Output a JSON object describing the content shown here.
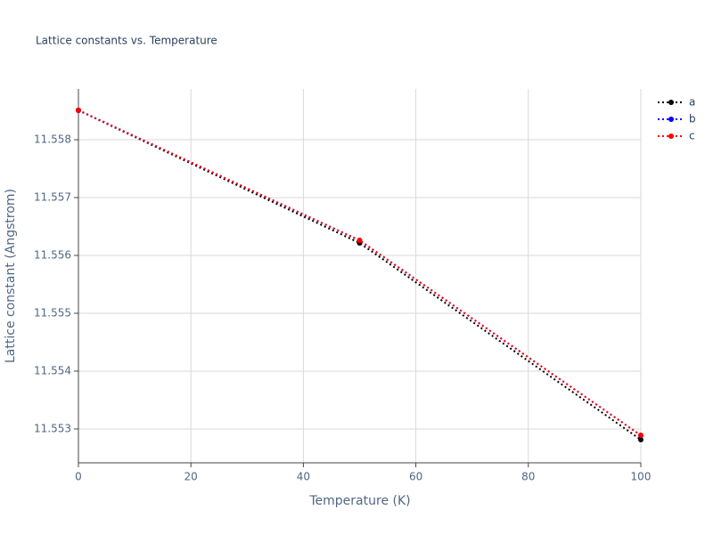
{
  "chart_data": {
    "type": "line",
    "title": "Lattice constants vs. Temperature",
    "xlabel": "Temperature (K)",
    "ylabel": "Lattice constant (Angstrom)",
    "x": [
      0,
      50,
      100
    ],
    "series": [
      {
        "name": "a",
        "color": "#000000",
        "values": [
          11.558508,
          11.556215,
          11.552815
        ]
      },
      {
        "name": "b",
        "color": "#0000ff",
        "values": [
          11.55851,
          11.55626,
          11.55289
        ]
      },
      {
        "name": "c",
        "color": "#ff0000",
        "values": [
          11.55851,
          11.55626,
          11.55289
        ]
      }
    ],
    "xlim": [
      0,
      100
    ],
    "xticks": [
      0,
      20,
      40,
      60,
      80,
      100
    ],
    "ylim": [
      11.552415,
      11.558877
    ],
    "yticks": [
      11.553,
      11.554,
      11.555,
      11.556,
      11.557,
      11.558
    ],
    "grid": true,
    "legend": "top-right"
  }
}
